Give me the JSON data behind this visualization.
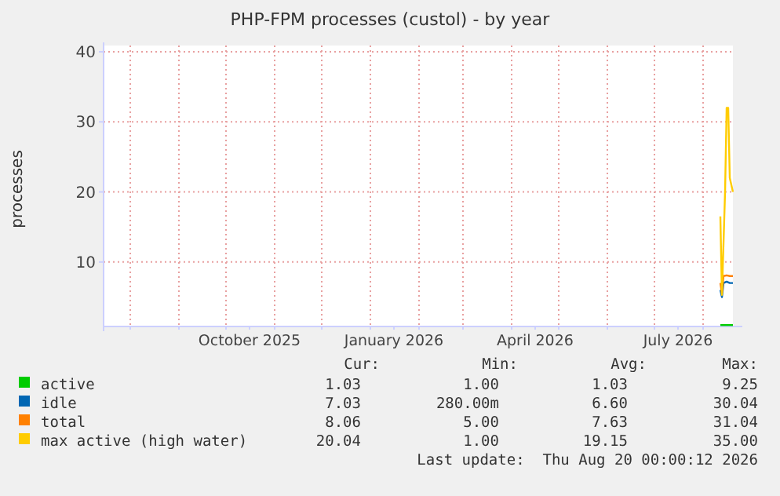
{
  "chart_data": {
    "type": "line",
    "title": "PHP-FPM processes (custol) - by year",
    "ylabel": "processes",
    "xlim": [
      "2025-07-15",
      "2026-08-20"
    ],
    "ylim": [
      0.8,
      40
    ],
    "yticks": [
      10,
      20,
      30,
      40
    ],
    "xticks": [
      {
        "value": "2025-08-01",
        "label": null
      },
      {
        "value": "2025-09-01",
        "label": null
      },
      {
        "value": "2025-10-01",
        "label": null
      },
      {
        "value": "2025-10-16",
        "label": "October 2025"
      },
      {
        "value": "2025-11-01",
        "label": null
      },
      {
        "value": "2025-12-01",
        "label": null
      },
      {
        "value": "2026-01-01",
        "label": null
      },
      {
        "value": "2026-01-16",
        "label": "January 2026"
      },
      {
        "value": "2026-02-01",
        "label": null
      },
      {
        "value": "2026-03-01",
        "label": null
      },
      {
        "value": "2026-04-01",
        "label": null
      },
      {
        "value": "2026-04-16",
        "label": "April 2026"
      },
      {
        "value": "2026-05-01",
        "label": null
      },
      {
        "value": "2026-06-01",
        "label": null
      },
      {
        "value": "2026-07-01",
        "label": null
      },
      {
        "value": "2026-07-16",
        "label": "July 2026"
      },
      {
        "value": "2026-08-01",
        "label": null
      }
    ],
    "grid": true,
    "legend": "bottom",
    "series": [
      {
        "name": "active",
        "color": "#00cc00",
        "x": [
          "2026-08-12",
          "2026-08-14",
          "2026-08-16",
          "2026-08-18",
          "2026-08-20"
        ],
        "values": [
          1,
          1,
          1,
          1,
          1
        ]
      },
      {
        "name": "idle",
        "color": "#0066b3",
        "x": [
          "2026-08-12",
          "2026-08-13",
          "2026-08-14",
          "2026-08-16",
          "2026-08-18",
          "2026-08-20"
        ],
        "values": [
          6,
          5,
          7,
          7.2,
          7,
          7
        ]
      },
      {
        "name": "total",
        "color": "#ff8000",
        "x": [
          "2026-08-12",
          "2026-08-13",
          "2026-08-14",
          "2026-08-16",
          "2026-08-18",
          "2026-08-20"
        ],
        "values": [
          7,
          5.5,
          8,
          8.1,
          8,
          8
        ]
      },
      {
        "name": "max active (high water)",
        "color": "#ffcc00",
        "x": [
          "2026-08-12",
          "2026-08-13",
          "2026-08-15",
          "2026-08-16",
          "2026-08-17",
          "2026-08-18",
          "2026-08-20"
        ],
        "values": [
          16.5,
          5.3,
          20,
          32,
          32,
          22,
          20
        ]
      }
    ],
    "annotations": [
      "Cur:",
      "Min:",
      "Avg:",
      "Max:",
      "1.03",
      "1.00",
      "1.03",
      "9.25",
      "7.03",
      "280.00m",
      "6.60",
      "30.04",
      "8.06",
      "5.00",
      "7.63",
      "31.04",
      "20.04",
      "1.00",
      "19.15",
      "35.00",
      "Last update:  Thu Aug 20 00:00:12 2026"
    ]
  }
}
